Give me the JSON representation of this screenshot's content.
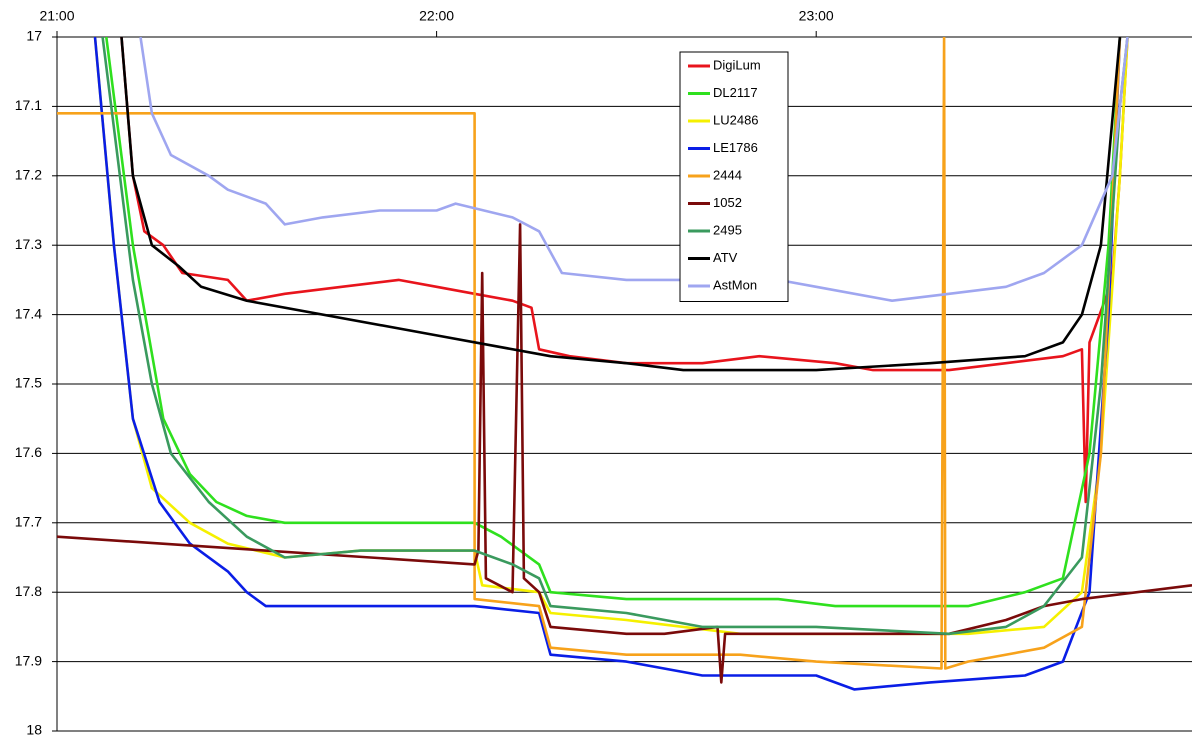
{
  "chart_data": {
    "type": "line",
    "xlim": [
      21,
      23.99
    ],
    "xticks": [
      {
        "value": 21,
        "label": "21:00"
      },
      {
        "value": 22,
        "label": "22:00"
      },
      {
        "value": 23,
        "label": "23:00"
      }
    ],
    "ylim": [
      17,
      18
    ],
    "y_inverted": true,
    "yticks": [
      17,
      17.1,
      17.2,
      17.3,
      17.4,
      17.5,
      17.6,
      17.7,
      17.8,
      17.9,
      18
    ],
    "grid": true,
    "x_axis_position": "top",
    "series": [
      {
        "name": "DigiLum",
        "color": "#e8141c",
        "x": [
          21.17,
          21.2,
          21.23,
          21.28,
          21.33,
          21.45,
          21.5,
          21.6,
          21.75,
          21.9,
          22.0,
          22.1,
          22.2,
          22.25,
          22.27,
          22.35,
          22.5,
          22.7,
          22.85,
          23.05,
          23.15,
          23.35,
          23.5,
          23.65,
          23.7,
          23.71,
          23.72,
          23.78,
          23.8,
          23.82
        ],
        "values": [
          17.0,
          17.2,
          17.28,
          17.3,
          17.34,
          17.35,
          17.38,
          17.37,
          17.36,
          17.35,
          17.36,
          17.37,
          17.38,
          17.39,
          17.45,
          17.46,
          17.47,
          17.47,
          17.46,
          17.47,
          17.48,
          17.48,
          17.47,
          17.46,
          17.45,
          17.67,
          17.44,
          17.35,
          17.2,
          17.0
        ]
      },
      {
        "name": "DL2117",
        "color": "#2fe01e",
        "x": [
          21.13,
          21.2,
          21.28,
          21.35,
          21.42,
          21.5,
          21.6,
          21.8,
          22.1,
          22.17,
          22.27,
          22.3,
          22.5,
          22.7,
          22.9,
          23.05,
          23.4,
          23.55,
          23.65,
          23.72,
          23.77,
          23.8
        ],
        "values": [
          17.0,
          17.3,
          17.55,
          17.63,
          17.67,
          17.69,
          17.7,
          17.7,
          17.7,
          17.72,
          17.76,
          17.8,
          17.81,
          17.81,
          17.81,
          17.82,
          17.82,
          17.8,
          17.78,
          17.6,
          17.3,
          17.0
        ]
      },
      {
        "name": "LU2486",
        "color": "#f5f000",
        "x": [
          21.1,
          21.15,
          21.2,
          21.25,
          21.35,
          21.45,
          21.6,
          21.8,
          22.1,
          22.12,
          22.27,
          22.3,
          22.5,
          22.8,
          23.1,
          23.4,
          23.6,
          23.7,
          23.75,
          23.8,
          23.82
        ],
        "values": [
          17.0,
          17.3,
          17.55,
          17.65,
          17.7,
          17.73,
          17.75,
          17.74,
          17.74,
          17.79,
          17.8,
          17.83,
          17.84,
          17.86,
          17.86,
          17.86,
          17.85,
          17.8,
          17.6,
          17.2,
          17.0
        ]
      },
      {
        "name": "LE1786",
        "color": "#0a1ee6",
        "x": [
          21.1,
          21.15,
          21.2,
          21.27,
          21.35,
          21.45,
          21.5,
          21.55,
          22.1,
          22.27,
          22.3,
          22.5,
          22.7,
          23.0,
          23.1,
          23.3,
          23.55,
          23.65,
          23.72,
          23.77,
          23.8
        ],
        "values": [
          17.0,
          17.3,
          17.55,
          17.67,
          17.73,
          17.77,
          17.8,
          17.82,
          17.82,
          17.83,
          17.89,
          17.9,
          17.92,
          17.92,
          17.94,
          17.93,
          17.92,
          17.9,
          17.8,
          17.4,
          17.0
        ]
      },
      {
        "name": "2444",
        "color": "#f7a21b",
        "x": [
          21.0,
          22.1,
          22.1,
          22.27,
          22.3,
          22.5,
          22.8,
          23.0,
          23.33,
          23.337,
          23.34,
          23.4,
          23.6,
          23.7,
          23.75,
          23.8
        ],
        "values": [
          17.11,
          17.11,
          17.81,
          17.82,
          17.88,
          17.89,
          17.89,
          17.9,
          17.91,
          17.0,
          17.91,
          17.9,
          17.88,
          17.85,
          17.6,
          17.0
        ]
      },
      {
        "name": "1052",
        "color": "#7a0a0a",
        "x": [
          21.0,
          22.1,
          22.11,
          22.12,
          22.13,
          22.2,
          22.22,
          22.23,
          22.27,
          22.3,
          22.5,
          22.6,
          22.74,
          22.75,
          22.76,
          23.0,
          23.35,
          23.5,
          23.6,
          23.7,
          23.99
        ],
        "values": [
          17.72,
          17.76,
          17.74,
          17.34,
          17.78,
          17.8,
          17.27,
          17.78,
          17.8,
          17.85,
          17.86,
          17.86,
          17.85,
          17.93,
          17.86,
          17.86,
          17.86,
          17.84,
          17.82,
          17.81,
          17.79
        ]
      },
      {
        "name": "2495",
        "color": "#3a9a5e",
        "x": [
          21.12,
          21.2,
          21.25,
          21.3,
          21.4,
          21.5,
          21.6,
          21.8,
          22.1,
          22.2,
          22.27,
          22.3,
          22.5,
          22.7,
          23.0,
          23.35,
          23.5,
          23.6,
          23.7,
          23.75,
          23.8,
          23.82
        ],
        "values": [
          17.0,
          17.35,
          17.5,
          17.6,
          17.67,
          17.72,
          17.75,
          17.74,
          17.74,
          17.76,
          17.78,
          17.82,
          17.83,
          17.85,
          17.85,
          17.86,
          17.85,
          17.82,
          17.75,
          17.5,
          17.1,
          17.0
        ]
      },
      {
        "name": "ATV",
        "color": "#000000",
        "x": [
          21.17,
          21.2,
          21.25,
          21.32,
          21.38,
          21.5,
          22.0,
          22.3,
          22.5,
          22.65,
          22.8,
          23.0,
          23.3,
          23.55,
          23.65,
          23.7,
          23.75,
          23.8
        ],
        "values": [
          17.0,
          17.2,
          17.3,
          17.33,
          17.36,
          17.38,
          17.43,
          17.46,
          17.47,
          17.48,
          17.48,
          17.48,
          17.47,
          17.46,
          17.44,
          17.4,
          17.3,
          17.0
        ]
      },
      {
        "name": "AstMon",
        "color": "#9fa6f0",
        "x": [
          21.22,
          21.25,
          21.3,
          21.4,
          21.45,
          21.55,
          21.6,
          21.7,
          21.85,
          22.0,
          22.05,
          22.2,
          22.27,
          22.33,
          22.5,
          22.7,
          22.9,
          23.0,
          23.2,
          23.35,
          23.5,
          23.6,
          23.7,
          23.78,
          23.82
        ],
        "values": [
          17.0,
          17.11,
          17.17,
          17.2,
          17.22,
          17.24,
          17.27,
          17.26,
          17.25,
          17.25,
          17.24,
          17.26,
          17.28,
          17.34,
          17.35,
          17.35,
          17.35,
          17.36,
          17.38,
          17.37,
          17.36,
          17.34,
          17.3,
          17.2,
          17.0
        ]
      }
    ]
  }
}
